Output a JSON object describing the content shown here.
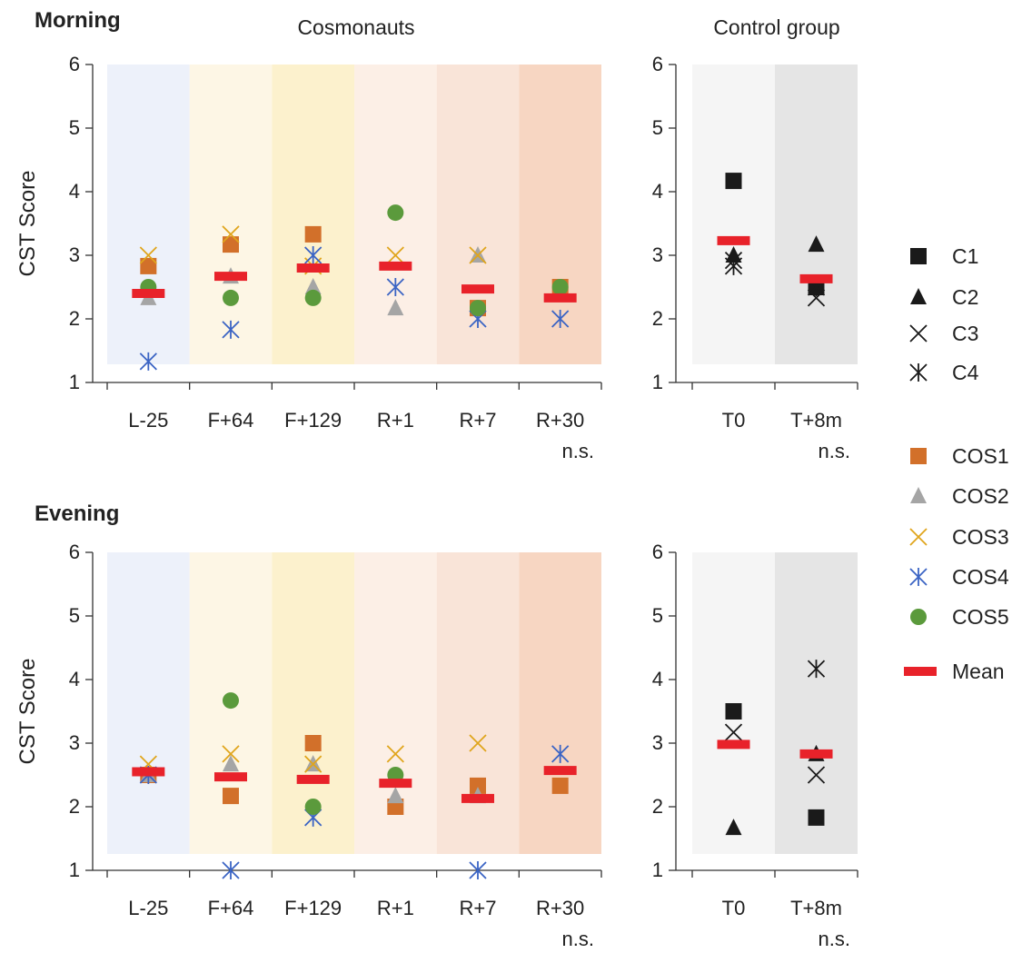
{
  "colors": {
    "C1": "#1a1a1a",
    "C2": "#1a1a1a",
    "C3": "#1a1a1a",
    "C4": "#1a1a1a",
    "COS1": "#d2702a",
    "COS2": "#a5a5a5",
    "COS3": "#e0a51c",
    "COS4": "#3b64c4",
    "COS5": "#5b9a3c",
    "mean": "#e8222a",
    "bands": [
      "#edf1fa",
      "#fdf6e5",
      "#fcf1cd",
      "#fcefe6",
      "#f9e4d8",
      "#f7d6c2"
    ],
    "control_bands": [
      "#f5f5f5",
      "#e5e5e5"
    ]
  },
  "legend": {
    "items": [
      {
        "label": "C1",
        "marker": "square",
        "color": "#1a1a1a"
      },
      {
        "label": "C2",
        "marker": "triangle",
        "color": "#1a1a1a"
      },
      {
        "label": "C3",
        "marker": "x",
        "color": "#1a1a1a"
      },
      {
        "label": "C4",
        "marker": "asterisk",
        "color": "#1a1a1a"
      },
      {
        "label": "COS1",
        "marker": "square",
        "color": "#d2702a"
      },
      {
        "label": "COS2",
        "marker": "triangle",
        "color": "#a5a5a5"
      },
      {
        "label": "COS3",
        "marker": "x",
        "color": "#e0a51c"
      },
      {
        "label": "COS4",
        "marker": "asterisk",
        "color": "#3b64c4"
      },
      {
        "label": "COS5",
        "marker": "circle",
        "color": "#5b9a3c"
      },
      {
        "label": "Mean",
        "marker": "dash",
        "color": "#e8222a"
      }
    ]
  },
  "chart_data": [
    {
      "type": "scatter",
      "panel": "Morning / Cosmonauts",
      "title": "Morning",
      "subtitle": "Cosmonauts",
      "ylabel": "CST Score",
      "ylim": [
        1,
        6
      ],
      "yticks": [
        "1",
        "2",
        "3",
        "4",
        "5",
        "6"
      ],
      "categories": [
        "L-25",
        "F+64",
        "F+129",
        "R+1",
        "R+7",
        "R+30"
      ],
      "note": "n.s.",
      "series": [
        {
          "name": "COS1",
          "values": [
            2.83,
            3.17,
            3.33,
            null,
            2.17,
            2.5
          ]
        },
        {
          "name": "COS2",
          "values": [
            2.33,
            2.67,
            2.5,
            2.17,
            3.0,
            null
          ]
        },
        {
          "name": "COS3",
          "values": [
            3.0,
            3.33,
            2.83,
            3.0,
            3.0,
            null
          ]
        },
        {
          "name": "COS4",
          "values": [
            1.33,
            1.83,
            3.0,
            2.5,
            2.0,
            2.0
          ]
        },
        {
          "name": "COS5",
          "values": [
            2.5,
            2.33,
            2.33,
            3.67,
            2.17,
            2.5
          ]
        },
        {
          "name": "Mean",
          "values": [
            2.4,
            2.67,
            2.8,
            2.83,
            2.47,
            2.33
          ]
        }
      ]
    },
    {
      "type": "scatter",
      "panel": "Morning / Control group",
      "subtitle": "Control group",
      "ylim": [
        1,
        6
      ],
      "yticks": [
        "1",
        "2",
        "3",
        "4",
        "5",
        "6"
      ],
      "categories": [
        "T0",
        "T+8m"
      ],
      "note": "n.s.",
      "series": [
        {
          "name": "C1",
          "values": [
            4.17,
            2.5
          ]
        },
        {
          "name": "C2",
          "values": [
            3.0,
            3.17
          ]
        },
        {
          "name": "C3",
          "values": [
            2.92,
            2.33
          ]
        },
        {
          "name": "C4",
          "values": [
            2.83,
            2.5
          ]
        },
        {
          "name": "Mean",
          "values": [
            3.23,
            2.63
          ]
        }
      ]
    },
    {
      "type": "scatter",
      "panel": "Evening / Cosmonauts",
      "title": "Evening",
      "ylabel": "CST Score",
      "ylim": [
        1,
        6
      ],
      "yticks": [
        "1",
        "2",
        "3",
        "4",
        "5",
        "6"
      ],
      "categories": [
        "L-25",
        "F+64",
        "F+129",
        "R+1",
        "R+7",
        "R+30"
      ],
      "note": "n.s.",
      "series": [
        {
          "name": "COS1",
          "values": [
            2.5,
            2.17,
            3.0,
            2.0,
            2.33,
            2.33
          ]
        },
        {
          "name": "COS2",
          "values": [
            2.5,
            2.67,
            2.67,
            2.17,
            2.17,
            null
          ]
        },
        {
          "name": "COS3",
          "values": [
            2.67,
            2.83,
            2.67,
            2.83,
            3.0,
            null
          ]
        },
        {
          "name": "COS4",
          "values": [
            2.5,
            1.0,
            1.83,
            null,
            1.0,
            2.83
          ]
        },
        {
          "name": "COS5",
          "values": [
            null,
            3.67,
            2.0,
            2.5,
            null,
            null
          ]
        },
        {
          "name": "Mean",
          "values": [
            2.55,
            2.47,
            2.43,
            2.37,
            2.13,
            2.57
          ]
        }
      ]
    },
    {
      "type": "scatter",
      "panel": "Evening / Control group",
      "ylim": [
        1,
        6
      ],
      "yticks": [
        "1",
        "2",
        "3",
        "4",
        "5",
        "6"
      ],
      "categories": [
        "T0",
        "T+8m"
      ],
      "note": "n.s.",
      "series": [
        {
          "name": "C1",
          "values": [
            3.5,
            1.83
          ]
        },
        {
          "name": "C2",
          "values": [
            1.67,
            2.83
          ]
        },
        {
          "name": "C3",
          "values": [
            3.17,
            2.5
          ]
        },
        {
          "name": "C4",
          "values": [
            null,
            4.17
          ]
        },
        {
          "name": "Mean",
          "values": [
            2.98,
            2.83
          ]
        }
      ]
    }
  ]
}
